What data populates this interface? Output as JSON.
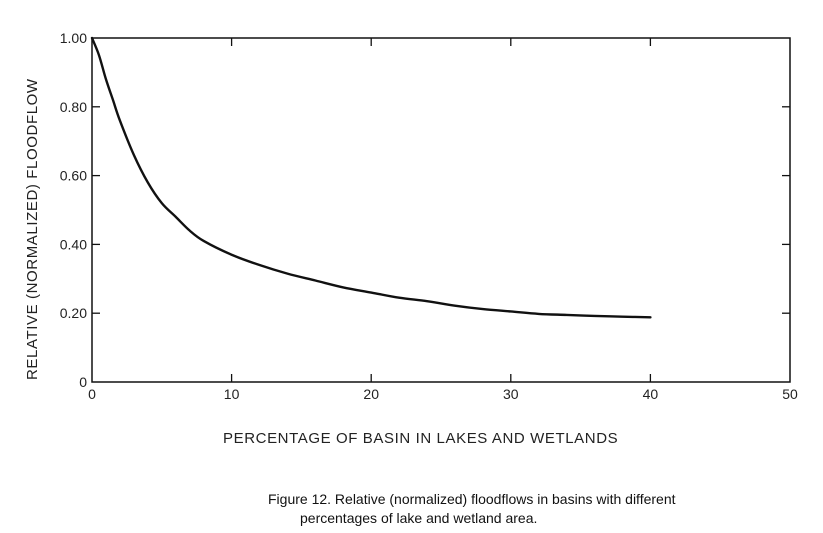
{
  "chart_data": {
    "type": "line",
    "title": "",
    "xlabel": "PERCENTAGE OF BASIN IN LAKES AND WETLANDS",
    "ylabel": "RELATIVE (NORMALIZED) FLOODFLOW",
    "xlim": [
      0,
      50
    ],
    "ylim": [
      0,
      1.0
    ],
    "x_ticks": [
      0,
      10,
      20,
      30,
      40,
      50
    ],
    "x_tick_labels": [
      "0",
      "10",
      "20",
      "30",
      "40",
      "50"
    ],
    "y_ticks": [
      0,
      0.2,
      0.4,
      0.6,
      0.8,
      1.0
    ],
    "y_tick_labels": [
      "0",
      "0.20",
      "0.40",
      "0.60",
      "0.80",
      "1.00"
    ],
    "grid": false,
    "series": [
      {
        "x": [
          0,
          0.5,
          1,
          1.5,
          2,
          3,
          4,
          5,
          6,
          7,
          8,
          10,
          12,
          14,
          16,
          18,
          20,
          22,
          24,
          26,
          28,
          30,
          32,
          34,
          36,
          38,
          40
        ],
        "y": [
          1.0,
          0.95,
          0.88,
          0.82,
          0.76,
          0.66,
          0.58,
          0.52,
          0.48,
          0.44,
          0.41,
          0.37,
          0.34,
          0.315,
          0.295,
          0.275,
          0.26,
          0.245,
          0.235,
          0.222,
          0.212,
          0.205,
          0.198,
          0.195,
          0.192,
          0.19,
          0.188
        ]
      }
    ]
  },
  "caption": {
    "line1": "Figure 12.  Relative (normalized) floodflows in basins with different",
    "line2": "percentages of lake and wetland area."
  }
}
